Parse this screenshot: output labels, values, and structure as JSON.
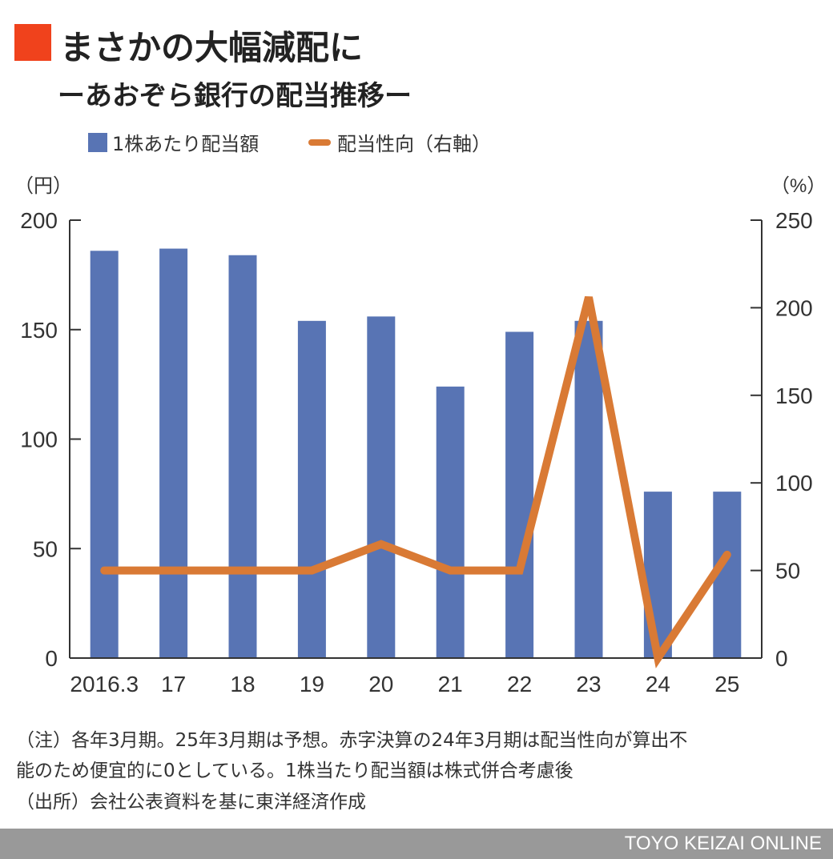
{
  "title": "まさかの大幅減配に",
  "subtitle": "ーあおぞら銀行の配当推移ー",
  "colors": {
    "accent": "#f0421c",
    "bar": "#5874b4",
    "line": "#d97a35"
  },
  "chart_data": {
    "type": "bar+line",
    "categories": [
      "2016.3",
      "17",
      "18",
      "19",
      "20",
      "21",
      "22",
      "23",
      "24",
      "25"
    ],
    "series": [
      {
        "name": "1株あたり配当額",
        "type": "bar",
        "axis": "left",
        "values": [
          186,
          187,
          184,
          154,
          156,
          124,
          149,
          154,
          76,
          76
        ]
      },
      {
        "name": "配当性向（右軸）",
        "type": "line",
        "axis": "right",
        "values": [
          50,
          50,
          50,
          50,
          65,
          50,
          50,
          206,
          0,
          59
        ]
      }
    ],
    "left_axis": {
      "unit": "（円）",
      "range": [
        0,
        200
      ],
      "ticks": [
        "0",
        "50",
        "100",
        "150",
        "200"
      ]
    },
    "right_axis": {
      "unit": "（%）",
      "range": [
        0,
        250
      ],
      "ticks": [
        "0",
        "50",
        "100",
        "150",
        "200",
        "250"
      ]
    },
    "legend": "top-left",
    "grid": false
  },
  "notes": [
    "（注）各年3月期。25年3月期は予想。赤字決算の24年3月期は配当性向が算出不",
    "能のため便宜的に0としている。1株当たり配当額は株式併合考慮後",
    "（出所）会社公表資料を基に東洋経済作成"
  ],
  "footer": "TOYO KEIZAI ONLINE"
}
